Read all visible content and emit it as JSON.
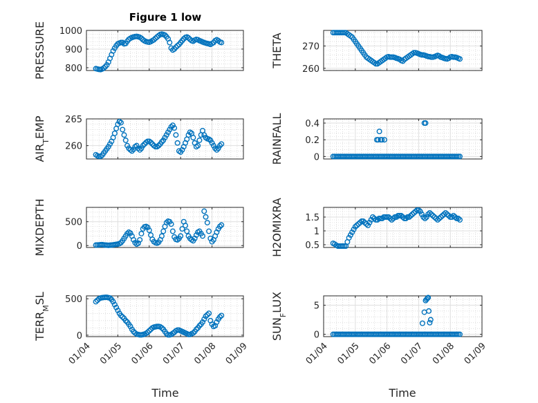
{
  "figure": {
    "title": "Figure 1 low"
  },
  "colors": {
    "marker": "#0072BD"
  },
  "x_tick_labels": [
    "01/04",
    "01/05",
    "01/06",
    "01/07",
    "01/08",
    "01/09"
  ],
  "chart_data": [
    {
      "type": "scatter",
      "id": "pressure",
      "ylabel": "PRESSURE",
      "xlim": [
        0,
        5
      ],
      "ylim": [
        785,
        1000
      ],
      "yticks": [
        800,
        900,
        1000
      ],
      "x": [
        0.3,
        0.35,
        0.4,
        0.45,
        0.5,
        0.55,
        0.6,
        0.65,
        0.7,
        0.75,
        0.8,
        0.85,
        0.9,
        0.95,
        1.0,
        1.05,
        1.1,
        1.15,
        1.2,
        1.25,
        1.3,
        1.35,
        1.4,
        1.45,
        1.5,
        1.55,
        1.6,
        1.65,
        1.7,
        1.75,
        1.8,
        1.85,
        1.9,
        1.95,
        2.0,
        2.05,
        2.1,
        2.15,
        2.2,
        2.25,
        2.3,
        2.35,
        2.4,
        2.45,
        2.5,
        2.55,
        2.6,
        2.65,
        2.7,
        2.75,
        2.8,
        2.85,
        2.9,
        2.95,
        3.0,
        3.05,
        3.1,
        3.15,
        3.2,
        3.25,
        3.3,
        3.35,
        3.4,
        3.45,
        3.5,
        3.55,
        3.6,
        3.65,
        3.7,
        3.75,
        3.8,
        3.85,
        3.9,
        3.95,
        4.0,
        4.05,
        4.1,
        4.15,
        4.2,
        4.25,
        4.3
      ],
      "y": [
        795,
        793,
        791,
        790,
        793,
        798,
        805,
        815,
        830,
        850,
        870,
        890,
        905,
        918,
        928,
        932,
        935,
        935,
        928,
        930,
        942,
        952,
        958,
        962,
        965,
        967,
        968,
        966,
        963,
        958,
        950,
        944,
        940,
        938,
        937,
        940,
        945,
        950,
        958,
        965,
        972,
        978,
        980,
        978,
        975,
        966,
        955,
        935,
        905,
        895,
        900,
        910,
        918,
        925,
        935,
        945,
        955,
        962,
        965,
        960,
        952,
        945,
        942,
        948,
        952,
        950,
        945,
        942,
        938,
        935,
        932,
        930,
        928,
        925,
        930,
        935,
        945,
        950,
        945,
        938,
        935
      ]
    },
    {
      "type": "scatter",
      "id": "theta",
      "ylabel": "THETA",
      "xlim": [
        0,
        5
      ],
      "ylim": [
        259,
        277
      ],
      "yticks": [
        260,
        270
      ],
      "x": [
        0.3,
        0.35,
        0.4,
        0.45,
        0.5,
        0.55,
        0.6,
        0.65,
        0.7,
        0.75,
        0.8,
        0.85,
        0.9,
        0.95,
        1.0,
        1.05,
        1.1,
        1.15,
        1.2,
        1.25,
        1.3,
        1.35,
        1.4,
        1.45,
        1.5,
        1.55,
        1.6,
        1.65,
        1.7,
        1.75,
        1.8,
        1.85,
        1.9,
        1.95,
        2.0,
        2.05,
        2.1,
        2.15,
        2.2,
        2.25,
        2.3,
        2.35,
        2.4,
        2.45,
        2.5,
        2.55,
        2.6,
        2.65,
        2.7,
        2.75,
        2.8,
        2.85,
        2.9,
        2.95,
        3.0,
        3.05,
        3.1,
        3.15,
        3.2,
        3.25,
        3.3,
        3.35,
        3.4,
        3.45,
        3.5,
        3.55,
        3.6,
        3.65,
        3.7,
        3.75,
        3.8,
        3.85,
        3.9,
        3.95,
        4.0,
        4.05,
        4.1,
        4.15,
        4.2,
        4.25,
        4.3
      ],
      "y": [
        276,
        276,
        276,
        276,
        276,
        276,
        276,
        276,
        276,
        275.5,
        275,
        274.5,
        274,
        273,
        272,
        271,
        270,
        269,
        268,
        267,
        266,
        265,
        264.5,
        264,
        263.5,
        263,
        262.5,
        262,
        262,
        262.5,
        263,
        263.5,
        264,
        264.5,
        265,
        265.2,
        265,
        265,
        265,
        264.8,
        264.5,
        264.3,
        264,
        263.5,
        263.2,
        264,
        264.5,
        265,
        265.5,
        266,
        266.5,
        267,
        267,
        266.8,
        266.5,
        266.2,
        266,
        266,
        265.8,
        265.5,
        265.3,
        265.2,
        265,
        265,
        265.2,
        265.5,
        265.8,
        265.5,
        265,
        264.8,
        264.5,
        264.3,
        264.2,
        264.5,
        265,
        265.2,
        265,
        265,
        264.8,
        264.5,
        264.2
      ]
    },
    {
      "type": "scatter",
      "id": "air-temp",
      "ylabel": "AIR_TEMP",
      "xlim": [
        0,
        5
      ],
      "ylim": [
        257.5,
        265
      ],
      "yticks": [
        260,
        265
      ],
      "x": [
        0.3,
        0.35,
        0.4,
        0.45,
        0.5,
        0.55,
        0.6,
        0.65,
        0.7,
        0.75,
        0.8,
        0.85,
        0.9,
        0.95,
        1.0,
        1.05,
        1.1,
        1.15,
        1.2,
        1.25,
        1.3,
        1.35,
        1.4,
        1.45,
        1.5,
        1.55,
        1.6,
        1.65,
        1.7,
        1.75,
        1.8,
        1.85,
        1.9,
        1.95,
        2.0,
        2.05,
        2.1,
        2.15,
        2.2,
        2.25,
        2.3,
        2.35,
        2.4,
        2.45,
        2.5,
        2.55,
        2.6,
        2.65,
        2.7,
        2.75,
        2.8,
        2.85,
        2.9,
        2.95,
        3.0,
        3.05,
        3.1,
        3.15,
        3.2,
        3.25,
        3.3,
        3.35,
        3.4,
        3.45,
        3.5,
        3.55,
        3.6,
        3.65,
        3.7,
        3.75,
        3.8,
        3.85,
        3.9,
        3.95,
        4.0,
        4.05,
        4.1,
        4.15,
        4.2,
        4.25,
        4.3
      ],
      "y": [
        258.3,
        258.1,
        258,
        258,
        258.2,
        258.6,
        259,
        259.4,
        259.8,
        260.3,
        260.8,
        261.5,
        262.3,
        263.2,
        264,
        264.5,
        264.3,
        263,
        262,
        261,
        260,
        259.5,
        259.2,
        259,
        259.3,
        259.8,
        260,
        259.5,
        259.2,
        259.5,
        260,
        260.3,
        260.6,
        260.8,
        260.8,
        260.6,
        260.3,
        260,
        259.8,
        259.8,
        260,
        260.3,
        260.7,
        261,
        261.5,
        262,
        262.5,
        263,
        263.5,
        263.8,
        263.3,
        262,
        260.5,
        259,
        258.8,
        259.2,
        259.8,
        260.5,
        261.2,
        262,
        262.5,
        262.3,
        261.5,
        260.5,
        259.8,
        260,
        261,
        262,
        262.8,
        262,
        261.5,
        261.3,
        261.2,
        261,
        260.5,
        260,
        259.5,
        259.2,
        259.5,
        260,
        260.3
      ]
    },
    {
      "type": "scatter",
      "id": "rainfall",
      "ylabel": "RAINFALL",
      "xlim": [
        0,
        5
      ],
      "ylim": [
        -0.03,
        0.45
      ],
      "yticks": [
        0,
        0.2,
        0.4
      ],
      "x": [
        0.3,
        0.35,
        0.4,
        0.45,
        0.5,
        0.55,
        0.6,
        0.65,
        0.7,
        0.75,
        0.8,
        0.85,
        0.9,
        0.95,
        1.0,
        1.05,
        1.1,
        1.15,
        1.2,
        1.25,
        1.3,
        1.35,
        1.4,
        1.45,
        1.5,
        1.55,
        1.6,
        1.65,
        1.7,
        1.75,
        1.8,
        1.85,
        1.9,
        1.95,
        2.0,
        2.05,
        2.1,
        2.15,
        2.2,
        2.25,
        2.3,
        2.35,
        2.4,
        2.45,
        2.5,
        2.55,
        2.6,
        2.65,
        2.7,
        2.75,
        2.8,
        2.85,
        2.9,
        2.95,
        3.0,
        3.05,
        3.1,
        3.15,
        3.2,
        3.25,
        3.3,
        3.35,
        3.4,
        3.45,
        3.5,
        3.55,
        3.6,
        3.65,
        3.7,
        3.75,
        3.8,
        3.85,
        3.9,
        3.95,
        4.0,
        4.05,
        4.1,
        4.15,
        4.2,
        4.25,
        4.3,
        1.68,
        1.72,
        1.76,
        1.8,
        1.84,
        1.92,
        3.18,
        3.22
      ],
      "y": [
        0,
        0,
        0,
        0,
        0,
        0,
        0,
        0,
        0,
        0,
        0,
        0,
        0,
        0,
        0,
        0,
        0,
        0,
        0,
        0,
        0,
        0,
        0,
        0,
        0,
        0,
        0,
        0,
        0,
        0,
        0,
        0,
        0,
        0,
        0,
        0,
        0,
        0,
        0,
        0,
        0,
        0,
        0,
        0,
        0,
        0,
        0,
        0,
        0,
        0,
        0,
        0,
        0,
        0,
        0,
        0,
        0,
        0,
        0,
        0,
        0,
        0,
        0,
        0,
        0,
        0,
        0,
        0,
        0,
        0,
        0,
        0,
        0,
        0,
        0,
        0,
        0,
        0,
        0,
        0,
        0,
        0.2,
        0.2,
        0.3,
        0.2,
        0.2,
        0.2,
        0.4,
        0.4
      ]
    },
    {
      "type": "scatter",
      "id": "mixdepth",
      "ylabel": "MIXDEPTH",
      "xlim": [
        0,
        5
      ],
      "ylim": [
        -40,
        800
      ],
      "yticks": [
        0,
        500
      ],
      "x": [
        0.3,
        0.35,
        0.4,
        0.45,
        0.5,
        0.55,
        0.6,
        0.65,
        0.7,
        0.75,
        0.8,
        0.85,
        0.9,
        0.95,
        1.0,
        1.05,
        1.1,
        1.15,
        1.2,
        1.25,
        1.3,
        1.35,
        1.4,
        1.45,
        1.5,
        1.55,
        1.6,
        1.65,
        1.7,
        1.75,
        1.8,
        1.85,
        1.9,
        1.95,
        2.0,
        2.05,
        2.1,
        2.15,
        2.2,
        2.25,
        2.3,
        2.35,
        2.4,
        2.45,
        2.5,
        2.55,
        2.6,
        2.65,
        2.7,
        2.75,
        2.8,
        2.85,
        2.9,
        2.95,
        3.0,
        3.05,
        3.1,
        3.15,
        3.2,
        3.25,
        3.3,
        3.35,
        3.4,
        3.45,
        3.5,
        3.55,
        3.6,
        3.65,
        3.7,
        3.75,
        3.8,
        3.85,
        3.9,
        3.95,
        4.0,
        4.05,
        4.1,
        4.15,
        4.2,
        4.25,
        4.3
      ],
      "y": [
        10,
        12,
        15,
        18,
        20,
        15,
        10,
        8,
        5,
        8,
        10,
        15,
        20,
        25,
        30,
        40,
        60,
        100,
        150,
        200,
        250,
        280,
        260,
        200,
        120,
        60,
        30,
        50,
        120,
        250,
        350,
        390,
        400,
        380,
        320,
        220,
        130,
        80,
        60,
        50,
        70,
        120,
        200,
        300,
        400,
        480,
        510,
        500,
        450,
        300,
        180,
        130,
        120,
        150,
        200,
        350,
        500,
        420,
        300,
        200,
        150,
        120,
        100,
        150,
        220,
        280,
        300,
        250,
        200,
        720,
        600,
        480,
        300,
        150,
        80,
        120,
        200,
        280,
        350,
        400,
        430
      ]
    },
    {
      "type": "scatter",
      "id": "h2omixra",
      "ylabel": "H2OMIXRA",
      "xlim": [
        0,
        5
      ],
      "ylim": [
        0.4,
        1.85
      ],
      "yticks": [
        0.5,
        1,
        1.5
      ],
      "x": [
        0.3,
        0.35,
        0.4,
        0.45,
        0.5,
        0.55,
        0.6,
        0.65,
        0.7,
        0.75,
        0.8,
        0.85,
        0.9,
        0.95,
        1.0,
        1.05,
        1.1,
        1.15,
        1.2,
        1.25,
        1.3,
        1.35,
        1.4,
        1.45,
        1.5,
        1.55,
        1.6,
        1.65,
        1.7,
        1.75,
        1.8,
        1.85,
        1.9,
        1.95,
        2.0,
        2.05,
        2.1,
        2.15,
        2.2,
        2.25,
        2.3,
        2.35,
        2.4,
        2.45,
        2.5,
        2.55,
        2.6,
        2.65,
        2.7,
        2.75,
        2.8,
        2.85,
        2.9,
        2.95,
        3.0,
        3.05,
        3.1,
        3.15,
        3.2,
        3.25,
        3.3,
        3.35,
        3.4,
        3.45,
        3.5,
        3.55,
        3.6,
        3.65,
        3.7,
        3.75,
        3.8,
        3.85,
        3.9,
        3.95,
        4.0,
        4.05,
        4.1,
        4.15,
        4.2,
        4.25,
        4.3
      ],
      "y": [
        0.55,
        0.52,
        0.48,
        0.45,
        0.45,
        0.45,
        0.45,
        0.45,
        0.45,
        0.6,
        0.75,
        0.85,
        0.95,
        1.05,
        1.15,
        1.2,
        1.25,
        1.3,
        1.35,
        1.35,
        1.3,
        1.25,
        1.2,
        1.3,
        1.4,
        1.5,
        1.45,
        1.4,
        1.4,
        1.45,
        1.45,
        1.45,
        1.5,
        1.5,
        1.5,
        1.5,
        1.45,
        1.4,
        1.45,
        1.5,
        1.5,
        1.55,
        1.55,
        1.55,
        1.5,
        1.45,
        1.45,
        1.5,
        1.5,
        1.55,
        1.6,
        1.65,
        1.7,
        1.75,
        1.75,
        1.7,
        1.6,
        1.5,
        1.45,
        1.5,
        1.6,
        1.65,
        1.6,
        1.55,
        1.5,
        1.45,
        1.4,
        1.45,
        1.5,
        1.55,
        1.6,
        1.65,
        1.6,
        1.55,
        1.5,
        1.5,
        1.55,
        1.5,
        1.45,
        1.45,
        1.4
      ]
    },
    {
      "type": "scatter",
      "id": "terr-msl",
      "ylabel": "TERR_MSL",
      "xlim": [
        0,
        5
      ],
      "ylim": [
        -20,
        540
      ],
      "yticks": [
        0,
        500
      ],
      "x": [
        0.3,
        0.35,
        0.4,
        0.45,
        0.5,
        0.55,
        0.6,
        0.65,
        0.7,
        0.75,
        0.8,
        0.85,
        0.9,
        0.95,
        1.0,
        1.05,
        1.1,
        1.15,
        1.2,
        1.25,
        1.3,
        1.35,
        1.4,
        1.45,
        1.5,
        1.55,
        1.6,
        1.65,
        1.7,
        1.75,
        1.8,
        1.85,
        1.9,
        1.95,
        2.0,
        2.05,
        2.1,
        2.15,
        2.2,
        2.25,
        2.3,
        2.35,
        2.4,
        2.45,
        2.5,
        2.55,
        2.6,
        2.65,
        2.7,
        2.75,
        2.8,
        2.85,
        2.9,
        2.95,
        3.0,
        3.05,
        3.1,
        3.15,
        3.2,
        3.25,
        3.3,
        3.35,
        3.4,
        3.45,
        3.5,
        3.55,
        3.6,
        3.65,
        3.7,
        3.75,
        3.8,
        3.85,
        3.9,
        3.95,
        4.0,
        4.05,
        4.1,
        4.15,
        4.2,
        4.25,
        4.3
      ],
      "y": [
        460,
        480,
        500,
        510,
        515,
        518,
        520,
        520,
        515,
        510,
        490,
        460,
        420,
        380,
        340,
        300,
        270,
        250,
        230,
        200,
        180,
        150,
        120,
        80,
        50,
        30,
        15,
        10,
        5,
        5,
        8,
        15,
        25,
        40,
        60,
        80,
        100,
        110,
        115,
        120,
        120,
        115,
        100,
        80,
        50,
        20,
        5,
        5,
        10,
        25,
        40,
        60,
        70,
        70,
        60,
        50,
        40,
        30,
        20,
        10,
        10,
        20,
        30,
        50,
        80,
        100,
        130,
        150,
        180,
        220,
        260,
        280,
        300,
        200,
        150,
        120,
        130,
        180,
        220,
        250,
        270
      ]
    },
    {
      "type": "scatter",
      "id": "sun-flux",
      "ylabel": "SUN_FLUX",
      "xlim": [
        0,
        5
      ],
      "ylim": [
        -0.4,
        6.6
      ],
      "yticks": [
        0,
        5
      ],
      "x": [
        0.3,
        0.35,
        0.4,
        0.45,
        0.5,
        0.55,
        0.6,
        0.65,
        0.7,
        0.75,
        0.8,
        0.85,
        0.9,
        0.95,
        1.0,
        1.05,
        1.1,
        1.15,
        1.2,
        1.25,
        1.3,
        1.35,
        1.4,
        1.45,
        1.5,
        1.55,
        1.6,
        1.65,
        1.7,
        1.75,
        1.8,
        1.85,
        1.9,
        1.95,
        2.0,
        2.05,
        2.1,
        2.15,
        2.2,
        2.25,
        2.3,
        2.35,
        2.4,
        2.45,
        2.5,
        2.55,
        2.6,
        2.65,
        2.7,
        2.75,
        2.8,
        2.85,
        2.9,
        2.95,
        3.0,
        3.05,
        3.1,
        3.15,
        3.2,
        3.25,
        3.3,
        3.35,
        3.4,
        3.45,
        3.5,
        3.55,
        3.6,
        3.65,
        3.7,
        3.75,
        3.8,
        3.85,
        3.9,
        3.95,
        4.0,
        4.05,
        4.1,
        4.15,
        4.2,
        4.25,
        4.3,
        3.12,
        3.18,
        3.22,
        3.25,
        3.28,
        3.3,
        3.32,
        3.35,
        3.38
      ],
      "y": [
        0,
        0,
        0,
        0,
        0,
        0,
        0,
        0,
        0,
        0,
        0,
        0,
        0,
        0,
        0,
        0,
        0,
        0,
        0,
        0,
        0,
        0,
        0,
        0,
        0,
        0,
        0,
        0,
        0,
        0,
        0,
        0,
        0,
        0,
        0,
        0,
        0,
        0,
        0,
        0,
        0,
        0,
        0,
        0,
        0,
        0,
        0,
        0,
        0,
        0,
        0,
        0,
        0,
        0,
        0,
        0,
        0,
        0,
        0,
        0,
        0,
        0,
        0,
        0,
        0,
        0,
        0,
        0,
        0,
        0,
        0,
        0,
        0,
        0,
        0,
        0,
        0,
        0,
        0,
        0,
        0,
        1.9,
        3.8,
        5.8,
        6.0,
        6.2,
        6.3,
        4.0,
        2.0,
        2.5
      ]
    }
  ],
  "layout_labels": {
    "xlabel": "Time"
  }
}
